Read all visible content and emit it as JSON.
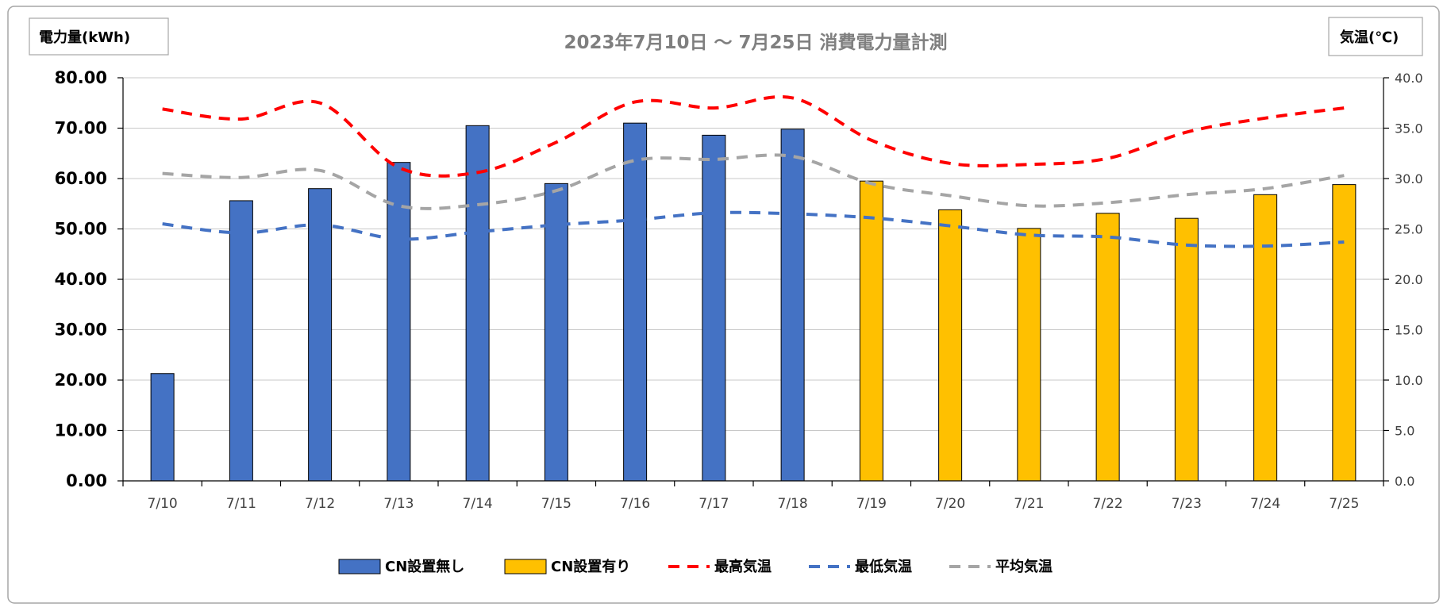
{
  "chart_data": {
    "type": "bar",
    "title": "2023年7月10日 ～ 7月25日 消費電力量計測",
    "ylabel": "電力量(kWh)",
    "y2label": "気温(℃)",
    "ylim": [
      0,
      80
    ],
    "y2lim": [
      0,
      40
    ],
    "yticks": [
      "0.00",
      "10.00",
      "20.00",
      "30.00",
      "40.00",
      "50.00",
      "60.00",
      "70.00",
      "80.00"
    ],
    "y2ticks": [
      "0.0",
      "5.0",
      "10.0",
      "15.0",
      "20.0",
      "25.0",
      "30.0",
      "35.0",
      "40.0"
    ],
    "categories": [
      "7/10",
      "7/11",
      "7/12",
      "7/13",
      "7/14",
      "7/15",
      "7/16",
      "7/17",
      "7/18",
      "7/19",
      "7/20",
      "7/21",
      "7/22",
      "7/23",
      "7/24",
      "7/25"
    ],
    "grid": true,
    "legend_position": "bottom",
    "bar_series": [
      {
        "name": "CN設置無し",
        "color": "#4472c4",
        "values": [
          21.3,
          55.6,
          58.0,
          63.2,
          70.5,
          59.0,
          71.0,
          68.6,
          69.8,
          null,
          null,
          null,
          null,
          null,
          null,
          null
        ]
      },
      {
        "name": "CN設置有り",
        "color": "#ffc000",
        "values": [
          null,
          null,
          null,
          null,
          null,
          null,
          null,
          null,
          null,
          59.5,
          53.8,
          50.1,
          53.1,
          52.1,
          56.8,
          58.8
        ]
      }
    ],
    "line_series": [
      {
        "name": "最高気温",
        "color": "#ff0000",
        "axis": "right",
        "values": [
          36.9,
          35.9,
          37.5,
          31.1,
          30.6,
          33.6,
          37.6,
          37.0,
          38.0,
          33.8,
          31.5,
          31.4,
          32.0,
          34.6,
          36.0,
          37.0
        ]
      },
      {
        "name": "最低気温",
        "color": "#4472c4",
        "axis": "right",
        "values": [
          25.5,
          24.6,
          25.4,
          24.0,
          24.7,
          25.4,
          25.9,
          26.6,
          26.5,
          26.1,
          25.3,
          24.4,
          24.2,
          23.4,
          23.3,
          23.7
        ]
      },
      {
        "name": "平均気温",
        "color": "#a5a5a5",
        "axis": "right",
        "values": [
          30.5,
          30.1,
          30.8,
          27.3,
          27.4,
          28.8,
          31.8,
          31.9,
          32.2,
          29.5,
          28.3,
          27.3,
          27.6,
          28.4,
          29.0,
          30.3
        ]
      }
    ]
  }
}
